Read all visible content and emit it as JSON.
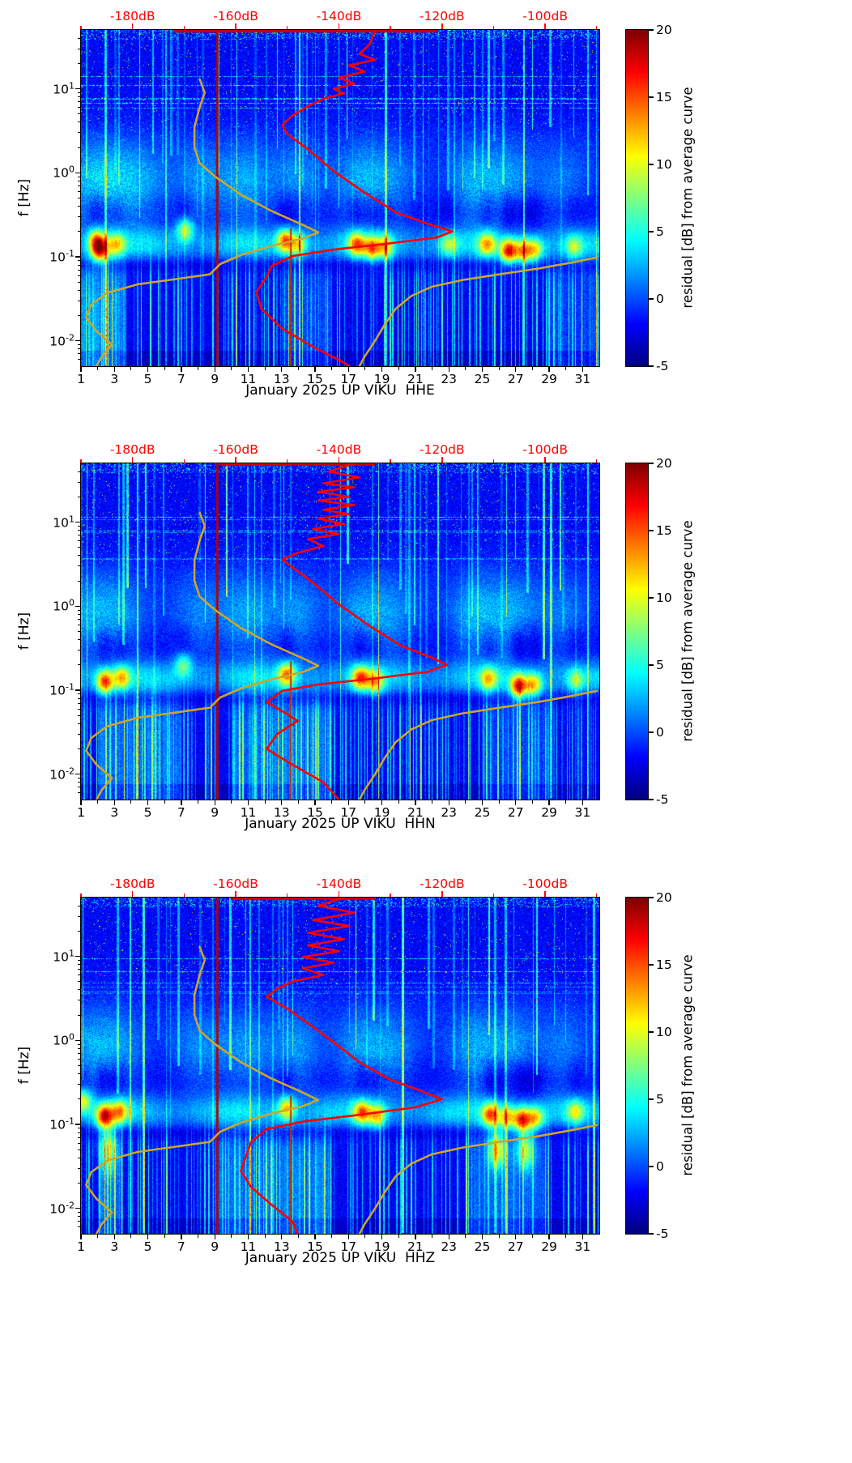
{
  "figure": {
    "background": "#ffffff"
  },
  "noise_model_curves": [
    {
      "name": "low-noise-model-curve",
      "color": "#cba62c",
      "width": 2.6,
      "points": [
        [
          -167,
          13
        ],
        [
          -166,
          9
        ],
        [
          -167,
          6
        ],
        [
          -168,
          3.5
        ],
        [
          -168,
          2
        ],
        [
          -167,
          1.3
        ],
        [
          -164,
          0.9
        ],
        [
          -159,
          0.55
        ],
        [
          -153,
          0.35
        ],
        [
          -147,
          0.24
        ],
        [
          -144,
          0.195
        ],
        [
          -147,
          0.165
        ],
        [
          -153,
          0.135
        ],
        [
          -159,
          0.105
        ],
        [
          -163,
          0.082
        ],
        [
          -165,
          0.062
        ],
        [
          -171,
          0.055
        ],
        [
          -179,
          0.047
        ],
        [
          -185,
          0.037
        ],
        [
          -188,
          0.027
        ],
        [
          -189,
          0.019
        ],
        [
          -187,
          0.013
        ],
        [
          -184,
          0.009
        ],
        [
          -186,
          0.0065
        ],
        [
          -187,
          0.005
        ]
      ]
    },
    {
      "name": "high-noise-model-curve",
      "color": "#cba62c",
      "width": 2.6,
      "points": [
        [
          -90,
          0.098
        ],
        [
          -95,
          0.085
        ],
        [
          -101,
          0.073
        ],
        [
          -108,
          0.063
        ],
        [
          -116,
          0.053
        ],
        [
          -122,
          0.044
        ],
        [
          -126,
          0.034
        ],
        [
          -129,
          0.024
        ],
        [
          -131,
          0.016
        ],
        [
          -133,
          0.01
        ],
        [
          -135,
          0.0065
        ],
        [
          -136,
          0.005
        ]
      ]
    }
  ],
  "event_lines": [
    {
      "day": 9.15,
      "f_range": [
        0.005,
        50
      ],
      "color": "#b30000",
      "width": 3
    },
    {
      "day": 13.55,
      "f_range": [
        0.005,
        0.22
      ],
      "color": "#c03000",
      "width": 2
    }
  ],
  "chart_data": [
    {
      "type": "heatmap",
      "channel": "HHE",
      "xlabel": "January 2025 UP VIKU  HHE",
      "ylabel": "f [Hz]",
      "x_ticks": [
        1,
        3,
        5,
        7,
        9,
        11,
        13,
        15,
        17,
        19,
        21,
        23,
        25,
        27,
        29,
        31
      ],
      "x_range": [
        1,
        32
      ],
      "y_scale": "log",
      "y_range_hz": [
        0.005,
        50
      ],
      "y_tick_exponents": [
        1,
        0,
        -1,
        -2
      ],
      "top_axis": {
        "color": "#ff0000",
        "db_range": [
          -190,
          -89.5
        ],
        "tick_values": [
          -180,
          -160,
          -140,
          -120,
          -100
        ],
        "tick_labels": [
          "-180dB",
          "-160dB",
          "-140dB",
          "-120dB",
          "-100dB"
        ]
      },
      "colorbar": {
        "label": "residual [dB] from average curve",
        "range": [
          -5,
          20
        ],
        "tick_values": [
          20,
          15,
          10,
          5,
          0,
          -5
        ],
        "colormap": "jet"
      },
      "average_curve": {
        "name": "average-psd-curve",
        "color": "#ff0000",
        "width": 2.6,
        "points": [
          [
            -133,
            48
          ],
          [
            -134,
            34
          ],
          [
            -136,
            26
          ],
          [
            -133,
            22
          ],
          [
            -138,
            19
          ],
          [
            -135,
            16
          ],
          [
            -140,
            13.5
          ],
          [
            -137,
            11.5
          ],
          [
            -141,
            10
          ],
          [
            -139,
            8.8
          ],
          [
            -143,
            7.6
          ],
          [
            -146,
            6.2
          ],
          [
            -149,
            4.8
          ],
          [
            -151,
            3.7
          ],
          [
            -150,
            2.9
          ],
          [
            -146,
            1.9
          ],
          [
            -141,
            1.05
          ],
          [
            -135,
            0.58
          ],
          [
            -129,
            0.34
          ],
          [
            -123,
            0.25
          ],
          [
            -118,
            0.2
          ],
          [
            -121,
            0.17
          ],
          [
            -130,
            0.145
          ],
          [
            -141,
            0.122
          ],
          [
            -149,
            0.102
          ],
          [
            -153,
            0.078
          ],
          [
            -154,
            0.058
          ],
          [
            -156,
            0.038
          ],
          [
            -155,
            0.024
          ],
          [
            -151,
            0.014
          ],
          [
            -145,
            0.0085
          ],
          [
            -139,
            0.0055
          ],
          [
            -138,
            0.005
          ]
        ]
      },
      "top_bar": {
        "db_range": [
          -172,
          -121
        ],
        "color": "#cc0000"
      },
      "texture": {
        "seed": 11,
        "hotspots": [
          [
            1.9,
            0.16,
            10
          ],
          [
            2.1,
            0.12,
            15
          ],
          [
            3.1,
            0.14,
            9
          ],
          [
            7.2,
            0.21,
            9
          ],
          [
            13.2,
            0.155,
            13
          ],
          [
            14,
            0.14,
            9
          ],
          [
            17.5,
            0.14,
            12
          ],
          [
            18.4,
            0.125,
            11
          ],
          [
            19.2,
            0.13,
            9
          ],
          [
            23,
            0.14,
            7
          ],
          [
            25.3,
            0.14,
            10
          ],
          [
            26.6,
            0.115,
            16
          ],
          [
            27.5,
            0.115,
            12
          ],
          [
            28.2,
            0.12,
            9
          ],
          [
            30.5,
            0.13,
            6
          ]
        ],
        "clouds": [
          [
            1.6,
            5
          ],
          [
            3.2,
            4
          ],
          [
            4.8,
            3.5
          ],
          [
            8.1,
            4
          ],
          [
            10.8,
            4.5
          ],
          [
            13.9,
            4
          ],
          [
            17.6,
            4.5
          ],
          [
            19.5,
            3.5
          ],
          [
            24.6,
            5
          ],
          [
            26.8,
            4
          ],
          [
            29.8,
            3
          ]
        ],
        "lowf_boost": [
          [
            1,
            3.6,
            6
          ],
          [
            13,
            16,
            3
          ],
          [
            29,
            32,
            3
          ]
        ]
      }
    },
    {
      "type": "heatmap",
      "channel": "HHN",
      "xlabel": "January 2025 UP VIKU  HHN",
      "ylabel": "f [Hz]",
      "x_ticks": [
        1,
        3,
        5,
        7,
        9,
        11,
        13,
        15,
        17,
        19,
        21,
        23,
        25,
        27,
        29,
        31
      ],
      "x_range": [
        1,
        32
      ],
      "y_scale": "log",
      "y_range_hz": [
        0.005,
        50
      ],
      "y_tick_exponents": [
        1,
        0,
        -1,
        -2
      ],
      "top_axis": {
        "color": "#ff0000",
        "db_range": [
          -190,
          -89.5
        ],
        "tick_values": [
          -180,
          -160,
          -140,
          -120,
          -100
        ],
        "tick_labels": [
          "-180dB",
          "-160dB",
          "-140dB",
          "-120dB",
          "-100dB"
        ]
      },
      "colorbar": {
        "label": "residual [dB] from average curve",
        "range": [
          -5,
          20
        ],
        "tick_values": [
          20,
          15,
          10,
          5,
          0,
          -5
        ],
        "colormap": "jet"
      },
      "average_curve": {
        "name": "average-psd-curve",
        "color": "#ff0000",
        "width": 2.6,
        "points": [
          [
            -137,
            50
          ],
          [
            -142,
            40
          ],
          [
            -136,
            34
          ],
          [
            -143,
            29
          ],
          [
            -137,
            26
          ],
          [
            -144,
            23
          ],
          [
            -138,
            20
          ],
          [
            -144,
            18
          ],
          [
            -137,
            16
          ],
          [
            -143,
            14
          ],
          [
            -138,
            12.5
          ],
          [
            -144,
            11
          ],
          [
            -139,
            9.5
          ],
          [
            -145,
            8.3
          ],
          [
            -140,
            7.2
          ],
          [
            -146,
            6.3
          ],
          [
            -143,
            5.2
          ],
          [
            -148,
            4.3
          ],
          [
            -151,
            3.6
          ],
          [
            -149,
            2.9
          ],
          [
            -145,
            1.9
          ],
          [
            -140,
            1.05
          ],
          [
            -134,
            0.58
          ],
          [
            -128,
            0.34
          ],
          [
            -122,
            0.245
          ],
          [
            -119,
            0.2
          ],
          [
            -123,
            0.165
          ],
          [
            -133,
            0.138
          ],
          [
            -144,
            0.117
          ],
          [
            -151,
            0.098
          ],
          [
            -154,
            0.072
          ],
          [
            -150,
            0.052
          ],
          [
            -148,
            0.043
          ],
          [
            -152,
            0.03
          ],
          [
            -154,
            0.02
          ],
          [
            -149,
            0.013
          ],
          [
            -143,
            0.008
          ],
          [
            -140,
            0.005
          ]
        ]
      },
      "top_bar": {
        "db_range": [
          -163,
          -133
        ],
        "color": "#cc0000"
      },
      "texture": {
        "seed": 23,
        "hotspots": [
          [
            2.4,
            0.125,
            14
          ],
          [
            3.4,
            0.14,
            10
          ],
          [
            7.1,
            0.2,
            7
          ],
          [
            13.3,
            0.155,
            12
          ],
          [
            17.7,
            0.14,
            13
          ],
          [
            18.6,
            0.125,
            10
          ],
          [
            25.4,
            0.135,
            9
          ],
          [
            27.2,
            0.11,
            16
          ],
          [
            28.1,
            0.115,
            11
          ],
          [
            30.6,
            0.13,
            6
          ]
        ],
        "clouds": [
          [
            1.5,
            4
          ],
          [
            3.3,
            4
          ],
          [
            8,
            3.5
          ],
          [
            10.9,
            4.5
          ],
          [
            13.8,
            4
          ],
          [
            17.7,
            4
          ],
          [
            19.6,
            3.5
          ],
          [
            24.6,
            5
          ],
          [
            26.9,
            4.5
          ],
          [
            29.9,
            3
          ]
        ],
        "lowf_boost": [
          [
            2,
            7,
            5
          ],
          [
            10,
            16,
            5
          ],
          [
            25,
            29,
            3
          ]
        ]
      }
    },
    {
      "type": "heatmap",
      "channel": "HHZ",
      "xlabel": "January 2025 UP VIKU  HHZ",
      "ylabel": "f [Hz]",
      "x_ticks": [
        1,
        3,
        5,
        7,
        9,
        11,
        13,
        15,
        17,
        19,
        21,
        23,
        25,
        27,
        29,
        31
      ],
      "x_range": [
        1,
        32
      ],
      "y_scale": "log",
      "y_range_hz": [
        0.005,
        50
      ],
      "y_tick_exponents": [
        1,
        0,
        -1,
        -2
      ],
      "top_axis": {
        "color": "#ff0000",
        "db_range": [
          -190,
          -89.5
        ],
        "tick_values": [
          -180,
          -160,
          -140,
          -120,
          -100
        ],
        "tick_labels": [
          "-180dB",
          "-160dB",
          "-140dB",
          "-120dB",
          "-100dB"
        ]
      },
      "colorbar": {
        "label": "residual [dB] from average curve",
        "range": [
          -5,
          20
        ],
        "tick_values": [
          20,
          15,
          10,
          5,
          0,
          -5
        ],
        "colormap": "jet"
      },
      "average_curve": {
        "name": "average-psd-curve",
        "color": "#ff0000",
        "width": 2.6,
        "points": [
          [
            -139,
            50
          ],
          [
            -144,
            40
          ],
          [
            -137,
            33
          ],
          [
            -145,
            27
          ],
          [
            -138,
            23
          ],
          [
            -146,
            19
          ],
          [
            -139,
            16
          ],
          [
            -146,
            13.5
          ],
          [
            -140,
            11.5
          ],
          [
            -147,
            9.8
          ],
          [
            -141,
            8.4
          ],
          [
            -147,
            7.2
          ],
          [
            -143,
            6
          ],
          [
            -149,
            5
          ],
          [
            -152,
            4.1
          ],
          [
            -154,
            3.3
          ],
          [
            -150,
            2.4
          ],
          [
            -146,
            1.6
          ],
          [
            -141,
            0.95
          ],
          [
            -136,
            0.55
          ],
          [
            -130,
            0.34
          ],
          [
            -124,
            0.25
          ],
          [
            -120,
            0.2
          ],
          [
            -125,
            0.16
          ],
          [
            -136,
            0.13
          ],
          [
            -147,
            0.108
          ],
          [
            -154,
            0.088
          ],
          [
            -157,
            0.062
          ],
          [
            -158,
            0.042
          ],
          [
            -159,
            0.028
          ],
          [
            -157,
            0.018
          ],
          [
            -153,
            0.011
          ],
          [
            -149,
            0.007
          ],
          [
            -148,
            0.005
          ]
        ]
      },
      "top_bar": {
        "db_range": [
          -161,
          -133
        ],
        "color": "#cc0000"
      },
      "texture": {
        "seed": 37,
        "hotspots": [
          [
            1.1,
            0.19,
            9
          ],
          [
            2.4,
            0.125,
            15
          ],
          [
            3.3,
            0.14,
            10
          ],
          [
            13.3,
            0.155,
            11
          ],
          [
            17.8,
            0.138,
            12
          ],
          [
            18.7,
            0.125,
            10
          ],
          [
            25.5,
            0.13,
            13
          ],
          [
            26.5,
            0.12,
            10
          ],
          [
            27.4,
            0.112,
            15
          ],
          [
            28.2,
            0.118,
            10
          ],
          [
            30.6,
            0.14,
            7
          ],
          [
            25.9,
            0.05,
            10,
            0.22
          ],
          [
            27.6,
            0.048,
            9,
            0.22
          ],
          [
            2.6,
            0.05,
            8,
            0.25
          ]
        ],
        "clouds": [
          [
            1.4,
            4
          ],
          [
            3.2,
            4
          ],
          [
            8,
            3.5
          ],
          [
            10.8,
            4
          ],
          [
            13.8,
            4
          ],
          [
            17.7,
            4
          ],
          [
            19.6,
            3.5
          ],
          [
            24.6,
            4.5
          ],
          [
            26.9,
            4
          ],
          [
            29.9,
            3
          ]
        ],
        "lowf_boost": [
          [
            2,
            3.5,
            5
          ],
          [
            9,
            16,
            5
          ],
          [
            24,
            29,
            4
          ]
        ]
      }
    }
  ]
}
